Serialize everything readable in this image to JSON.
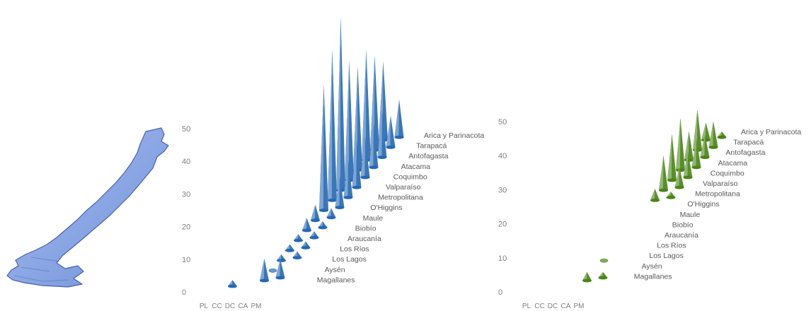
{
  "palette": {
    "blue": "#3a76b8",
    "blue_light": "#8db4e2",
    "green": "#5a8f2c",
    "green_light": "#a9cf7c",
    "map_fill": "#8aa7e6",
    "map_edge": "#4a63a6"
  },
  "map": {
    "icon": "chile-map-icon"
  },
  "chart_data": [
    {
      "type": "3d-cone",
      "color": "#3a76b8",
      "y_ticks": [
        "0",
        "10",
        "20",
        "30",
        "40",
        "50"
      ],
      "ylim": [
        0,
        50
      ],
      "categories": [
        "PL",
        "CC",
        "DC",
        "CA",
        "PM"
      ],
      "regions": [
        "Arica y Parinacota",
        "Tarapacá",
        "Antofagasta",
        "Atacama",
        "Coquimbo",
        "Valparaíso",
        "Metropolitana",
        "O'Higgins",
        "Maule",
        "Biobío",
        "Araucanía",
        "Los Ríos",
        "Los Lagos",
        "Aysén",
        "Magallanes"
      ],
      "series": [
        {
          "values": [
            0,
            0,
            0,
            25,
            12
          ]
        },
        {
          "values": [
            0,
            0,
            0,
            30,
            10
          ]
        },
        {
          "values": [
            0,
            0,
            0,
            35,
            15
          ]
        },
        {
          "values": [
            0,
            0,
            0,
            33,
            14
          ]
        },
        {
          "values": [
            0,
            0,
            0,
            38,
            13
          ]
        },
        {
          "values": [
            0,
            0,
            0,
            55,
            15
          ]
        },
        {
          "values": [
            0,
            0,
            0,
            48,
            12
          ]
        },
        {
          "values": [
            0,
            0,
            0,
            40,
            10
          ]
        },
        {
          "values": [
            0,
            0,
            0,
            5,
            3
          ]
        },
        {
          "values": [
            0,
            0,
            0,
            4,
            2
          ]
        },
        {
          "values": [
            0,
            0,
            0,
            2,
            2
          ]
        },
        {
          "values": [
            0,
            0,
            0,
            2,
            2
          ]
        },
        {
          "values": [
            0,
            0,
            0,
            2,
            2
          ]
        },
        {
          "values": [
            0,
            0,
            0,
            1,
            0
          ]
        },
        {
          "values": [
            0,
            2,
            0,
            7,
            6
          ]
        }
      ]
    },
    {
      "type": "3d-cone",
      "color": "#5a8f2c",
      "y_ticks": [
        "0",
        "10",
        "20",
        "30",
        "40",
        "50"
      ],
      "ylim": [
        0,
        50
      ],
      "categories": [
        "PL",
        "CC",
        "DC",
        "CA",
        "PM"
      ],
      "regions": [
        "Arica y Parinacota",
        "Tarapacá",
        "Antofagasta",
        "Atacama",
        "Coquimbo",
        "Valparaíso",
        "Metropolitana",
        "O'Higgins",
        "Maule",
        "Biobío",
        "Araucanía",
        "Los Ríos",
        "Los Lagos",
        "Aysén",
        "Magallanes"
      ],
      "series": [
        {
          "values": [
            0,
            0,
            0,
            6,
            2
          ]
        },
        {
          "values": [
            0,
            0,
            0,
            14,
            9
          ]
        },
        {
          "values": [
            0,
            0,
            0,
            10,
            8
          ]
        },
        {
          "values": [
            0,
            0,
            0,
            18,
            10
          ]
        },
        {
          "values": [
            0,
            0,
            0,
            16,
            9
          ]
        },
        {
          "values": [
            0,
            0,
            0,
            12,
            7
          ]
        },
        {
          "values": [
            0,
            0,
            0,
            4,
            2
          ]
        },
        {
          "values": [
            0,
            0,
            0,
            0,
            0
          ]
        },
        {
          "values": [
            0,
            0,
            0,
            0,
            0
          ]
        },
        {
          "values": [
            0,
            0,
            0,
            0,
            0
          ]
        },
        {
          "values": [
            0,
            0,
            0,
            0,
            0
          ]
        },
        {
          "values": [
            0,
            0,
            0,
            0,
            0
          ]
        },
        {
          "values": [
            0,
            0,
            0,
            1,
            0
          ]
        },
        {
          "values": [
            0,
            0,
            0,
            0,
            0
          ]
        },
        {
          "values": [
            0,
            0,
            0,
            3,
            2
          ]
        }
      ]
    }
  ]
}
